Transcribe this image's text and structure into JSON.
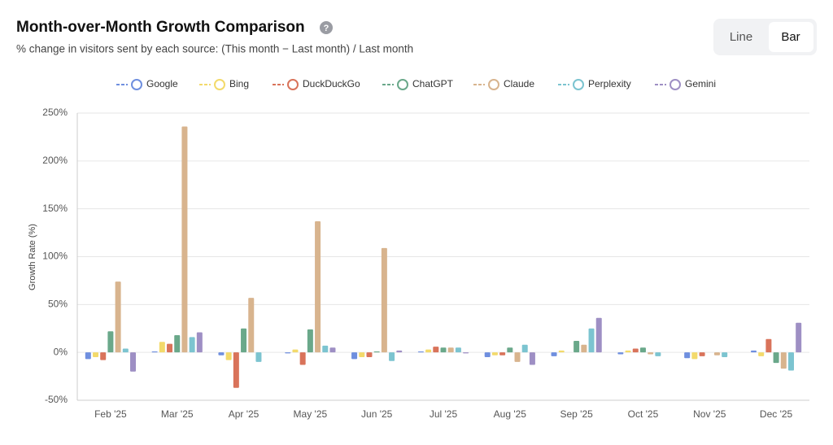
{
  "header": {
    "title": "Month-over-Month Growth Comparison",
    "help_icon": "?",
    "subtitle": "% change in visitors sent by each source: (This month − Last month) / Last month"
  },
  "controls": {
    "options": [
      "Line",
      "Bar"
    ],
    "active": "Bar"
  },
  "chart_data": {
    "type": "bar",
    "y_label": "Growth Rate (%)",
    "categories": [
      "Feb '25",
      "Mar '25",
      "Apr '25",
      "May '25",
      "Jun '25",
      "Jul '25",
      "Aug '25",
      "Sep '25",
      "Oct '25",
      "Nov '25",
      "Dec '25"
    ],
    "ylim": [
      -50,
      250
    ],
    "yticks": [
      {
        "value": -50,
        "label": "-50%"
      },
      {
        "value": 0,
        "label": "0%"
      },
      {
        "value": 50,
        "label": "50%"
      },
      {
        "value": 100,
        "label": "100%"
      },
      {
        "value": 150,
        "label": "150%"
      },
      {
        "value": 200,
        "label": "200%"
      },
      {
        "value": 250,
        "label": "250%"
      }
    ],
    "grid": true,
    "series": [
      {
        "name": "Google",
        "color": "#6f8fdf",
        "values": [
          -7,
          1,
          -3,
          -1,
          -7,
          1,
          -5,
          -4,
          -2,
          -6,
          2
        ]
      },
      {
        "name": "Bing",
        "color": "#f3da6b",
        "values": [
          -5,
          11,
          -8,
          3,
          -5,
          3,
          -3,
          2,
          2,
          -7,
          -4
        ]
      },
      {
        "name": "DuckDuckGo",
        "color": "#d9735a",
        "values": [
          -8,
          9,
          -37,
          -13,
          -5,
          6,
          -3,
          0,
          4,
          -4,
          14
        ]
      },
      {
        "name": "ChatGPT",
        "color": "#6aa88a",
        "values": [
          22,
          18,
          25,
          24,
          1,
          5,
          5,
          12,
          5,
          0,
          -11
        ]
      },
      {
        "name": "Claude",
        "color": "#d8b48e",
        "values": [
          74,
          236,
          57,
          137,
          109,
          5,
          -10,
          8,
          -2,
          -3,
          -17
        ]
      },
      {
        "name": "Perplexity",
        "color": "#7cc4d0",
        "values": [
          4,
          16,
          -10,
          7,
          -9,
          5,
          8,
          25,
          -4,
          -5,
          -19
        ]
      },
      {
        "name": "Gemini",
        "color": "#9e8fc4",
        "values": [
          -20,
          21,
          0,
          5,
          2,
          -1,
          -13,
          36,
          0,
          0,
          31
        ]
      }
    ]
  }
}
